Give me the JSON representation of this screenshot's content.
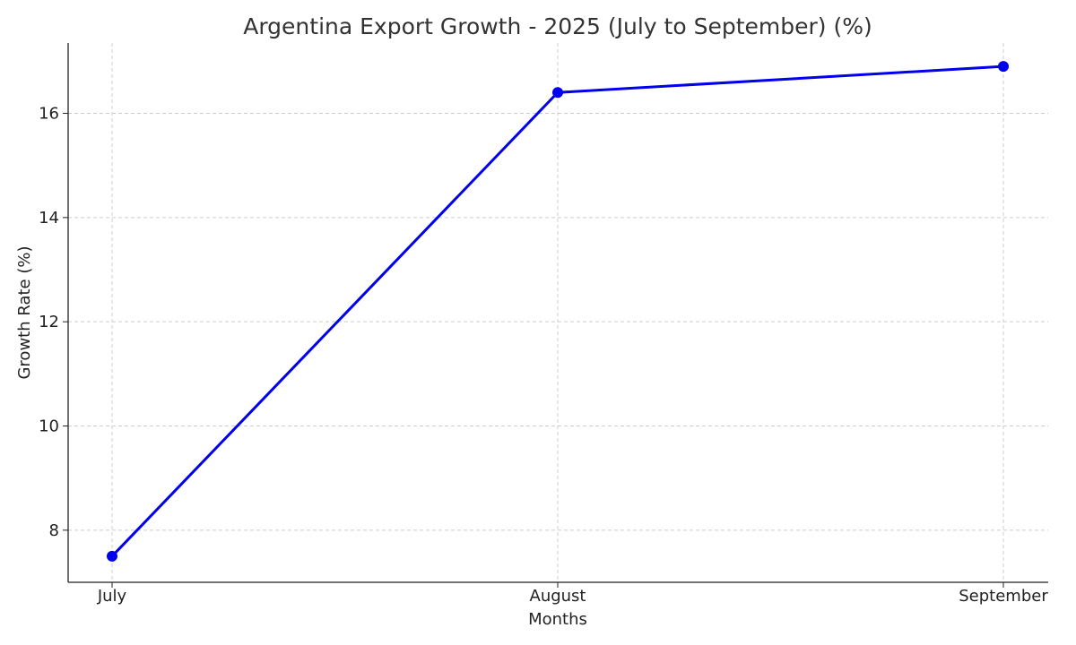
{
  "chart_data": {
    "type": "line",
    "title": "Argentina Export Growth - 2025 (July to September) (%)",
    "xlabel": "Months",
    "ylabel": "Growth Rate (%)",
    "categories": [
      "July",
      "August",
      "September"
    ],
    "series": [
      {
        "values": [
          7.5,
          16.4,
          16.9
        ],
        "color": "#0000ee"
      }
    ],
    "yticks": [
      8,
      10,
      12,
      14,
      16
    ],
    "ylim": [
      7.0,
      17.35
    ],
    "grid": true,
    "marker": "circle"
  }
}
